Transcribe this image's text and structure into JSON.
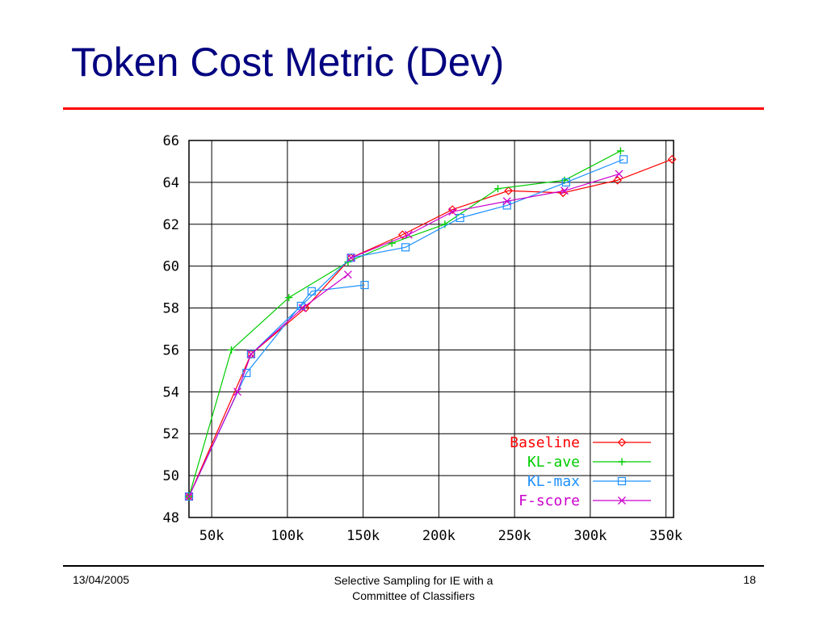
{
  "slide": {
    "title": "Token Cost Metric (Dev)"
  },
  "footer": {
    "date": "13/04/2005",
    "title_line1": "Selective Sampling for IE with a",
    "title_line2": "Committee of Classifiers",
    "page": "18"
  },
  "chart_data": {
    "type": "line",
    "title": "",
    "xlabel": "",
    "ylabel": "",
    "xlim": [
      35000,
      355000
    ],
    "ylim": [
      48,
      66
    ],
    "x_ticks": [
      50000,
      100000,
      150000,
      200000,
      250000,
      300000,
      350000
    ],
    "x_tick_labels": [
      "50k",
      "100k",
      "150k",
      "200k",
      "250k",
      "300k",
      "350k"
    ],
    "y_ticks": [
      48,
      50,
      52,
      54,
      56,
      58,
      60,
      62,
      64,
      66
    ],
    "y_tick_labels": [
      "48",
      "50",
      "52",
      "54",
      "56",
      "58",
      "60",
      "62",
      "64",
      "66"
    ],
    "grid": true,
    "legend_position": "bottom-right",
    "series": [
      {
        "name": "Baseline",
        "color": "#ff0000",
        "marker": "diamond",
        "points": [
          [
            35000,
            49.0
          ],
          [
            76000,
            55.8
          ],
          [
            112000,
            58.0
          ],
          [
            142000,
            60.4
          ],
          [
            176000,
            61.5
          ],
          [
            209000,
            62.7
          ],
          [
            246000,
            63.6
          ],
          [
            282000,
            63.5
          ],
          [
            318000,
            64.1
          ],
          [
            354000,
            65.1
          ]
        ]
      },
      {
        "name": "KL-ave",
        "color": "#00cc00",
        "marker": "plus",
        "points": [
          [
            35000,
            49.0
          ],
          [
            63000,
            56.0
          ],
          [
            101000,
            58.5
          ],
          [
            140000,
            60.2
          ],
          [
            169000,
            61.1
          ],
          [
            204000,
            62.0
          ],
          [
            239000,
            63.7
          ],
          [
            283000,
            64.1
          ],
          [
            320000,
            65.5
          ]
        ]
      },
      {
        "name": "KL-max",
        "color": "#1e90ff",
        "marker": "square",
        "points": [
          [
            35000,
            49.0
          ],
          [
            73000,
            54.9
          ],
          [
            116000,
            58.8
          ],
          [
            151000,
            59.1
          ]
        ]
      },
      {
        "name": "KL-max",
        "color": "#1e90ff",
        "marker": "square",
        "points": [
          [
            76000,
            55.8
          ],
          [
            109000,
            58.1
          ],
          [
            142000,
            60.4
          ],
          [
            178000,
            60.9
          ],
          [
            214000,
            62.3
          ],
          [
            245000,
            62.9
          ],
          [
            284000,
            64.0
          ],
          [
            322000,
            65.1
          ]
        ]
      },
      {
        "name": "F-score",
        "color": "#cc00cc",
        "marker": "x",
        "points": [
          [
            35000,
            49.0
          ],
          [
            67000,
            54.0
          ],
          [
            76000,
            55.8
          ],
          [
            110000,
            58.0
          ],
          [
            140000,
            59.6
          ]
        ]
      },
      {
        "name": "F-score",
        "color": "#cc00cc",
        "marker": "x",
        "points": [
          [
            142000,
            60.4
          ],
          [
            180000,
            61.5
          ],
          [
            209000,
            62.6
          ],
          [
            245000,
            63.1
          ],
          [
            283000,
            63.6
          ],
          [
            319000,
            64.4
          ]
        ]
      }
    ],
    "legend": [
      {
        "name": "Baseline",
        "color": "#ff0000",
        "marker": "diamond"
      },
      {
        "name": "KL-ave",
        "color": "#00cc00",
        "marker": "plus"
      },
      {
        "name": "KL-max",
        "color": "#1e90ff",
        "marker": "square"
      },
      {
        "name": "F-score",
        "color": "#cc00cc",
        "marker": "x"
      }
    ]
  }
}
